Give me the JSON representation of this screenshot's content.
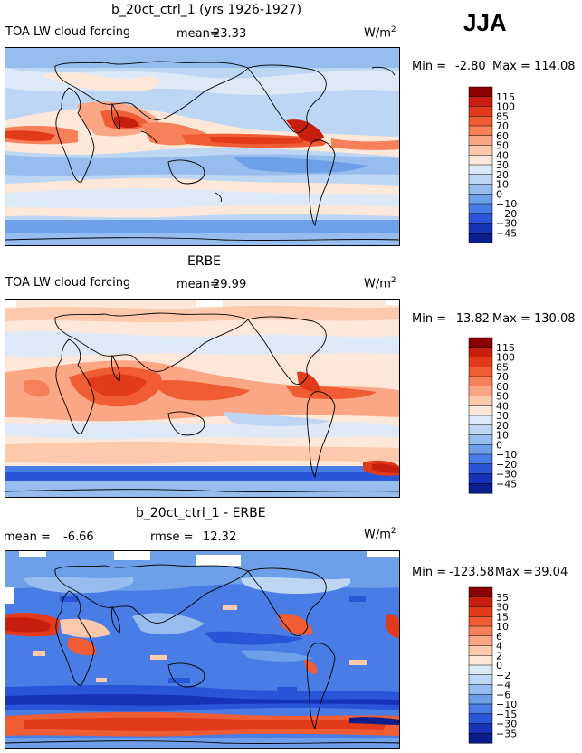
{
  "season": "JJA",
  "units": "W/m",
  "units_sup": "2",
  "color_scale_abs": {
    "levels": [
      "115",
      "100",
      "85",
      "70",
      "60",
      "50",
      "40",
      "30",
      "20",
      "10",
      "0",
      "−10",
      "−20",
      "−30",
      "−45"
    ],
    "colors": [
      "#8b0000",
      "#c81e0e",
      "#e23b1c",
      "#f05c33",
      "#f6805a",
      "#fba684",
      "#fdc9ad",
      "#fde7d8",
      "#dde9f7",
      "#bcd6f3",
      "#96bdee",
      "#6ea0ea",
      "#4a7ce6",
      "#2b55d8",
      "#1633b8",
      "#0a1d8c"
    ]
  },
  "color_scale_diff": {
    "levels": [
      "35",
      "30",
      "15",
      "10",
      "6",
      "4",
      "2",
      "0",
      "−2",
      "−4",
      "−6",
      "−10",
      "−15",
      "−30",
      "−35"
    ],
    "colors": [
      "#8b0000",
      "#c81e0e",
      "#e23b1c",
      "#f05c33",
      "#f6805a",
      "#fba684",
      "#fdc9ad",
      "#fde7d8",
      "#dde9f7",
      "#bcd6f3",
      "#96bdee",
      "#6ea0ea",
      "#4a7ce6",
      "#2b55d8",
      "#1633b8",
      "#0a1d8c"
    ]
  },
  "panels": [
    {
      "title": "b_20ct_ctrl_1 (yrs 1926-1927)",
      "variable": "TOA LW cloud forcing",
      "mean_text": "mean=",
      "mean_value": "23.33",
      "min_text": "Min =",
      "min_value": "-2.80",
      "max_text": "Max =",
      "max_value": "114.08"
    },
    {
      "title": "ERBE",
      "variable": "TOA LW cloud forcing",
      "mean_text": "mean=",
      "mean_value": "29.99",
      "min_text": "Min =",
      "min_value": "-13.82",
      "max_text": "Max =",
      "max_value": "130.08"
    },
    {
      "title": "b_20ct_ctrl_1 - ERBE",
      "mean_text": "mean =",
      "mean_value": "-6.66",
      "rmse_text": "rmse =",
      "rmse_value": "12.32",
      "min_text": "Min =",
      "min_value": "-123.58",
      "max_text": "Max =",
      "max_value": "39.04"
    }
  ]
}
